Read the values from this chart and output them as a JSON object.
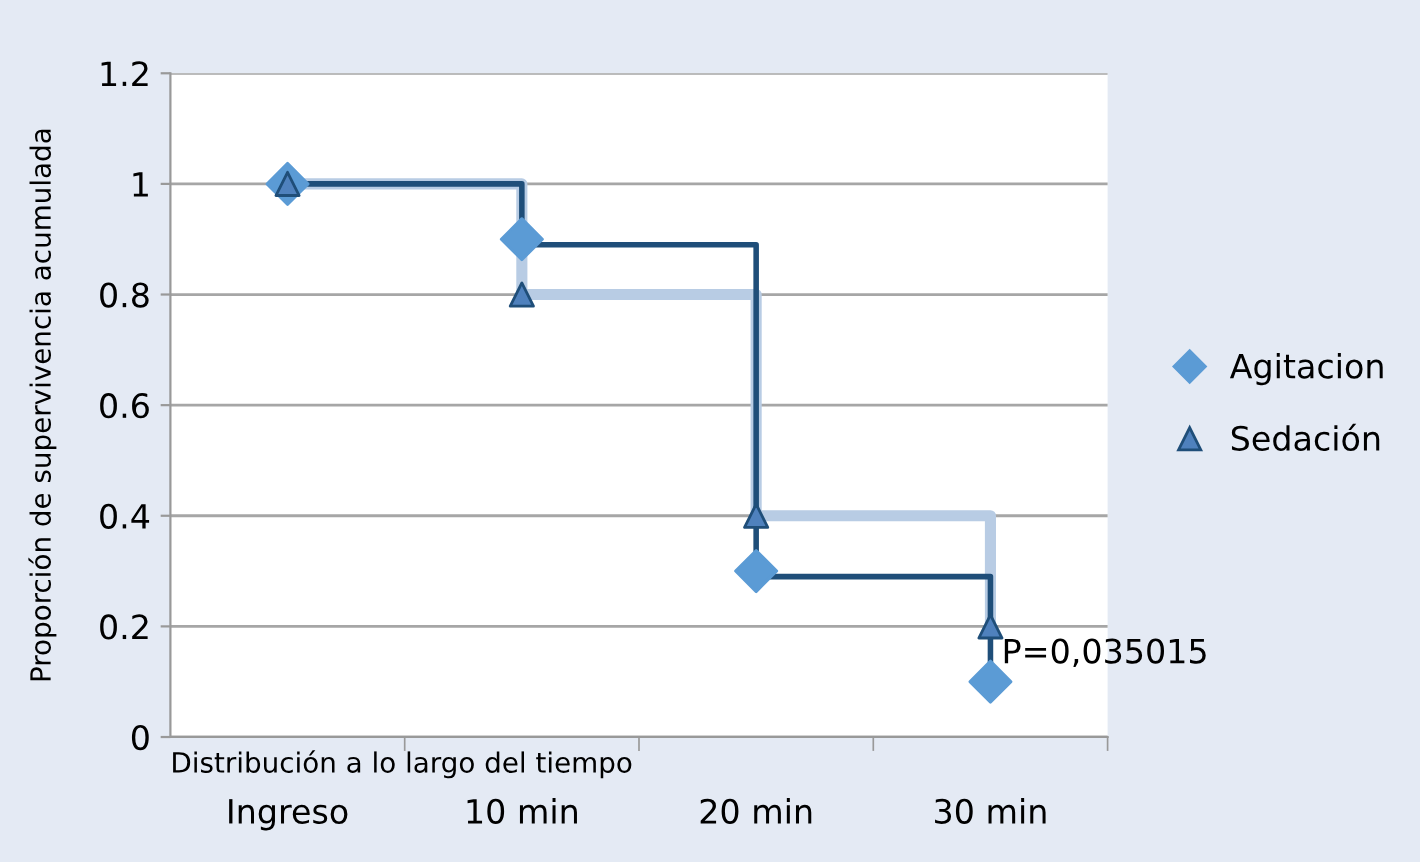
{
  "chart_data": {
    "type": "scatter",
    "xlabel": "Distribución a lo largo del tiempo",
    "ylabel": "Proporción de supervivencia acumulada",
    "categories": [
      "Ingreso",
      "10 min",
      "20 min",
      "30 min"
    ],
    "series": [
      {
        "type": "step",
        "color": "#b8cce4",
        "values": [
          1,
          0.8,
          0.4,
          0.2
        ]
      },
      {
        "type": "step",
        "color": "#1f4e79",
        "values": [
          1,
          0.89,
          0.29,
          0.1
        ]
      },
      {
        "name": "Agitacion",
        "color": "#5b9bd5",
        "marker": "diamond",
        "values": [
          1,
          0.9,
          0.3,
          0.1
        ]
      },
      {
        "name": "Sedación",
        "color": "#4f81bd",
        "marker": "triangle",
        "values": [
          1,
          0.8,
          0.4,
          0.2
        ]
      }
    ],
    "annotations": [
      {
        "text": "P=0,035015",
        "x": "30 min",
        "y": 0.15
      }
    ],
    "ylim": [
      0,
      1.2
    ],
    "yticks": [
      0,
      0.2,
      0.4,
      0.6,
      0.8,
      1,
      1.2
    ],
    "grid": "y",
    "legend": "right"
  }
}
